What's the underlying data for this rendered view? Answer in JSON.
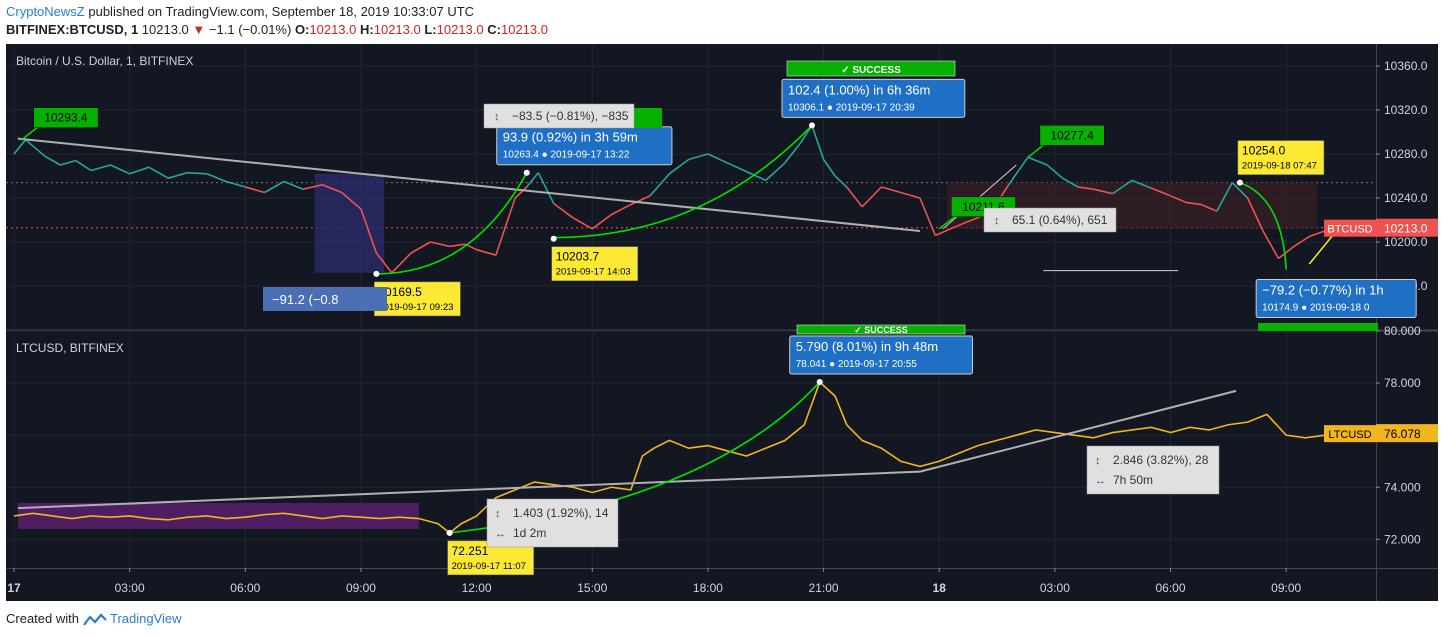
{
  "header": {
    "publisher": "CryptoNewsZ",
    "published_text": " published on TradingView.com, September 18, 2019 10:33:07 UTC",
    "symbol": "BITFINEX:BTCUSD, 1",
    "last": "10213.0",
    "change": "−1.1 (−0.01%)",
    "o_label": "O:",
    "o": "10213.0",
    "h_label": "H:",
    "h": "10213.0",
    "l_label": "L:",
    "l": "10213.0",
    "c_label": "C:",
    "c": "10213.0"
  },
  "footer": {
    "created_with": "Created with",
    "brand": "TradingView"
  },
  "colors": {
    "bg": "#131722",
    "up": "#26a69a",
    "down": "#ef5350",
    "ltc": "#f2b51f",
    "green": "#00c000",
    "blue": "#1f6fc4",
    "yellow": "#fce933",
    "grid": "#23262f"
  },
  "chart_data": [
    {
      "type": "line",
      "title": "Bitcoin / U.S. Dollar, 1, BITFINEX",
      "series_label": "BTCUSD",
      "last_value": "10213.0",
      "ylim": [
        10120,
        10380
      ],
      "yticks": [
        "10360.0",
        "10320.0",
        "10280.0",
        "10240.0",
        "10200.0",
        "10160.0"
      ],
      "ytick_values": [
        10360,
        10320,
        10280,
        10240,
        10200,
        10160
      ],
      "xlim": [
        0,
        34.5
      ],
      "series": [
        {
          "x": [
            0,
            0.3,
            0.8,
            1.2,
            1.6,
            2.0,
            2.5,
            3.0,
            3.5,
            4.0,
            4.5,
            5.0,
            5.5,
            6.0,
            6.5,
            7.0,
            7.5,
            8.0,
            8.5,
            9.0,
            9.4,
            9.8,
            10.3,
            10.8,
            11.3,
            11.7,
            12.0,
            12.5,
            13.0,
            13.3,
            13.6,
            14.0,
            14.5,
            15.0,
            15.5,
            16.0,
            16.5,
            17.0,
            17.5,
            18.0,
            18.5,
            19.0,
            19.5,
            20.0,
            20.4,
            20.7,
            21.0,
            21.3,
            21.6,
            22.0,
            22.5,
            23.0,
            23.5,
            23.9,
            24.3,
            24.7,
            25.0,
            25.4,
            25.8,
            26.3,
            26.8,
            27.2,
            27.6,
            28.0,
            28.5,
            29.0,
            29.5,
            30.0,
            30.4,
            30.8,
            31.2,
            31.6,
            32.0,
            32.4,
            32.8,
            33.2,
            33.6,
            34.0,
            34.5
          ],
          "y": [
            10280,
            10293,
            10278,
            10270,
            10274,
            10265,
            10270,
            10262,
            10268,
            10258,
            10263,
            10262,
            10255,
            10250,
            10245,
            10255,
            10248,
            10252,
            10245,
            10230,
            10190,
            10172,
            10190,
            10200,
            10196,
            10198,
            10193,
            10188,
            10240,
            10250,
            10263,
            10235,
            10222,
            10212,
            10225,
            10234,
            10242,
            10262,
            10275,
            10280,
            10272,
            10264,
            10256,
            10272,
            10290,
            10306,
            10275,
            10260,
            10250,
            10232,
            10250,
            10245,
            10240,
            10206,
            10212,
            10218,
            10222,
            10230,
            10252,
            10277,
            10270,
            10258,
            10250,
            10248,
            10244,
            10256,
            10249,
            10242,
            10236,
            10234,
            10228,
            10254,
            10240,
            10210,
            10185,
            10196,
            10205,
            10210,
            10213
          ]
        }
      ],
      "annotations": [
        {
          "kind": "price_label",
          "text": "10293.4",
          "x": 0.2,
          "y": 10293,
          "color": "green"
        },
        {
          "kind": "price_label",
          "text": "10277.4",
          "x": 26.3,
          "y": 10277,
          "color": "green"
        },
        {
          "kind": "price_label",
          "text": "10211.6",
          "x": 24.0,
          "y": 10212,
          "color": "green"
        },
        {
          "kind": "point_label",
          "text": "10169.5",
          "date": "2019-09-17 09:23",
          "x": 9.4,
          "y": 10171,
          "color": "yellow",
          "position": "below"
        },
        {
          "kind": "point_label",
          "text": "10203.7",
          "date": "2019-09-17 14:03",
          "x": 14.0,
          "y": 10203,
          "color": "yellow",
          "position": "below"
        },
        {
          "kind": "point_label",
          "text": "10254.0",
          "date": "2019-09-18 07:47",
          "x": 31.8,
          "y": 10254,
          "color": "yellow",
          "position": "above"
        },
        {
          "kind": "move_label",
          "text": "93.9 (0.92%) in 3h 59m",
          "sub_price": "10263.4",
          "sub_date": "2019-09-17  13:22",
          "x": 13.3,
          "y": 10263,
          "position": "above"
        },
        {
          "kind": "move_label",
          "text": "102.4 (1.00%) in 6h 36m",
          "sub_price": "10306.1",
          "sub_date": "2019-09-17  20:39",
          "x": 20.7,
          "y": 10306,
          "position": "above"
        },
        {
          "kind": "move_label",
          "text": "−79.2 (−0.77%) in 1h",
          "sub_price": "10174.9",
          "sub_date": "2019-09-18  0",
          "x": 33.0,
          "y": 10175,
          "position": "below"
        },
        {
          "kind": "measure_label",
          "text": "−83.5 (−0.81%), −835"
        },
        {
          "kind": "measure_label",
          "text": "65.1 (0.64%), 651"
        },
        {
          "kind": "measure_label",
          "text": "−91.2 (−0.8"
        },
        {
          "kind": "banner",
          "text": "SUCCESS"
        }
      ]
    },
    {
      "type": "line",
      "title": "LTCUSD, BITFINEX",
      "series_label": "LTCUSD",
      "last_value": "76.078",
      "ylim": [
        70.9,
        80.0
      ],
      "yticks": [
        "80.000",
        "78.000",
        "76.000",
        "74.000",
        "72.000"
      ],
      "ytick_values": [
        80,
        78,
        76,
        74,
        72
      ],
      "xlim": [
        0,
        34.5
      ],
      "series": [
        {
          "x": [
            0,
            0.5,
            1.0,
            1.5,
            2.0,
            2.5,
            3.0,
            3.5,
            4.0,
            4.5,
            5.0,
            5.5,
            6.0,
            6.5,
            7.0,
            7.5,
            8.0,
            8.5,
            9.0,
            9.5,
            10.0,
            10.5,
            11.0,
            11.3,
            11.6,
            12.0,
            12.5,
            13.0,
            13.5,
            14.0,
            14.5,
            15.0,
            15.5,
            16.0,
            16.3,
            16.6,
            17.0,
            17.5,
            18.0,
            18.5,
            19.0,
            19.5,
            20.0,
            20.5,
            20.9,
            21.3,
            21.6,
            22.0,
            22.5,
            23.0,
            23.5,
            24.0,
            24.5,
            25.0,
            25.5,
            26.0,
            26.5,
            27.0,
            27.5,
            28.0,
            28.5,
            29.0,
            29.5,
            30.0,
            30.5,
            31.0,
            31.5,
            32.0,
            32.5,
            33.0,
            33.5,
            34.0,
            34.5
          ],
          "y": [
            72.9,
            73.0,
            72.9,
            72.8,
            72.9,
            72.85,
            72.9,
            72.8,
            72.75,
            72.85,
            72.9,
            72.8,
            72.85,
            72.95,
            73.0,
            72.9,
            72.8,
            72.9,
            72.85,
            72.8,
            72.85,
            72.8,
            72.6,
            72.25,
            72.6,
            72.9,
            73.6,
            73.9,
            74.2,
            74.1,
            74.0,
            73.8,
            74.0,
            73.9,
            75.2,
            75.5,
            75.8,
            75.5,
            75.6,
            75.4,
            75.2,
            75.5,
            75.8,
            76.4,
            78.04,
            77.5,
            76.4,
            75.8,
            75.5,
            75.0,
            74.8,
            75.0,
            75.3,
            75.6,
            75.8,
            76.0,
            76.2,
            76.1,
            76.0,
            75.9,
            76.1,
            76.2,
            76.3,
            76.1,
            76.3,
            76.2,
            76.4,
            76.5,
            76.8,
            76.0,
            75.9,
            76.0,
            76.078
          ]
        }
      ],
      "annotations": [
        {
          "kind": "point_label",
          "text": "72.251",
          "date": "2019-09-17 11:07",
          "x": 11.3,
          "y": 72.25,
          "color": "yellow",
          "position": "below"
        },
        {
          "kind": "move_label",
          "text": "5.790 (8.01%) in 9h 48m",
          "sub_price": "78.041",
          "sub_date": "2019-09-17  20:55",
          "x": 20.9,
          "y": 78.04,
          "position": "above"
        },
        {
          "kind": "measure_label",
          "text": "1.403 (1.92%), 14",
          "sub": "1d 2m"
        },
        {
          "kind": "measure_label",
          "text": "2.846 (3.82%), 28",
          "sub": "7h 50m"
        },
        {
          "kind": "banner",
          "text": "SUCCESS"
        }
      ]
    }
  ],
  "x_axis": {
    "ticks": [
      {
        "label": "17",
        "x": 0,
        "bold": true
      },
      {
        "label": "03:00",
        "x": 3
      },
      {
        "label": "06:00",
        "x": 6
      },
      {
        "label": "09:00",
        "x": 9
      },
      {
        "label": "12:00",
        "x": 12
      },
      {
        "label": "15:00",
        "x": 15
      },
      {
        "label": "18:00",
        "x": 18
      },
      {
        "label": "21:00",
        "x": 21
      },
      {
        "label": "18",
        "x": 24,
        "bold": true
      },
      {
        "label": "03:00",
        "x": 27
      },
      {
        "label": "06:00",
        "x": 30
      },
      {
        "label": "09:00",
        "x": 33
      }
    ]
  }
}
